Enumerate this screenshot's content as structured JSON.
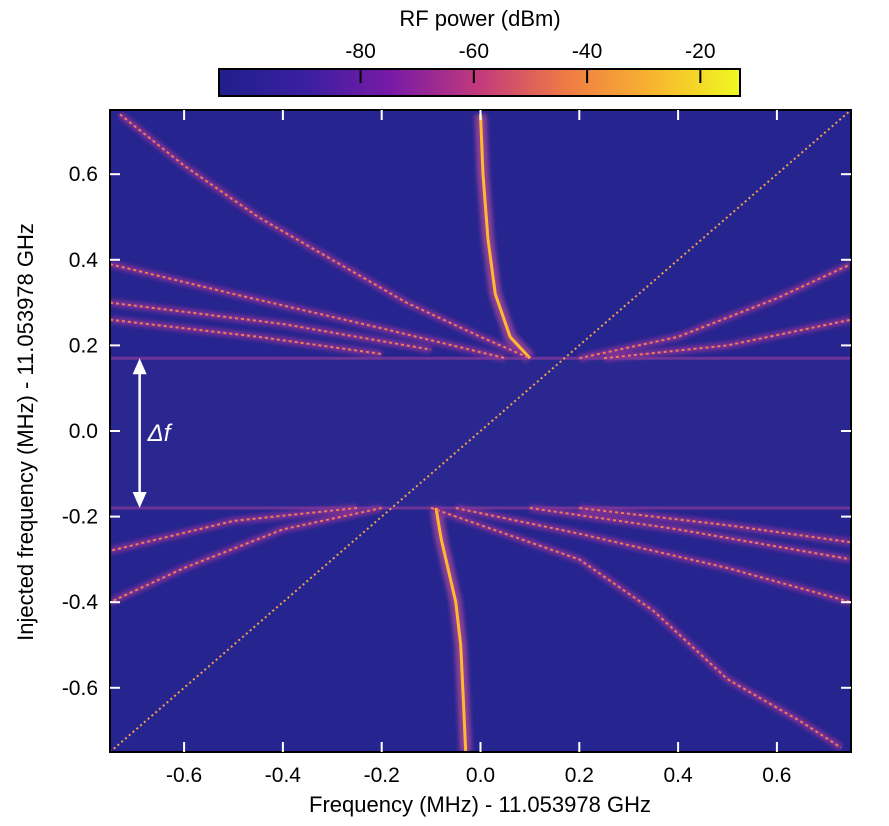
{
  "chart_data": {
    "type": "heatmap",
    "xlabel": "Frequency (MHz) - 11.053978 GHz",
    "ylabel": "Injected frequency (MHz) - 11.053978 GHz",
    "xlim": [
      -0.75,
      0.75
    ],
    "ylim": [
      -0.75,
      0.75
    ],
    "xticks": [
      -0.6,
      -0.4,
      -0.2,
      0.0,
      0.2,
      0.4,
      0.6
    ],
    "xtick_labels": [
      "-0.6",
      "-0.4",
      "-0.2",
      "0.0",
      "0.2",
      "0.4",
      "0.6"
    ],
    "yticks": [
      -0.6,
      -0.4,
      -0.2,
      0.0,
      0.2,
      0.4,
      0.6
    ],
    "ytick_labels": [
      "-0.6",
      "-0.4",
      "-0.2",
      "0.0",
      "0.2",
      "0.4",
      "0.6"
    ],
    "colorbar": {
      "label": "RF power (dBm)",
      "range": [
        -105,
        -13
      ],
      "ticks": [
        -80,
        -60,
        -40,
        -20
      ],
      "tick_labels": [
        "-80",
        "-60",
        "-40",
        "-20"
      ],
      "colormap": "plasma",
      "colors": [
        "#1f1f8c",
        "#3a1fa0",
        "#7a1aa6",
        "#c33a7c",
        "#ef7b45",
        "#f8b52f",
        "#f0f921"
      ]
    },
    "background_color": "#26248f",
    "locking_band": {
      "ymin": -0.18,
      "ymax": 0.17,
      "color": "#2a2890"
    },
    "annotation": {
      "label": "Δf",
      "from_y": 0.17,
      "to_y": -0.18,
      "x": -0.69
    },
    "traces": [
      {
        "name": "injected-signal",
        "kind": "diagonal",
        "x": [
          -0.75,
          0.75
        ],
        "y": [
          -0.75,
          0.75
        ]
      },
      {
        "name": "free-running-upper",
        "x": [
          0.0,
          0.005,
          0.015,
          0.03,
          0.06,
          0.1
        ],
        "y": [
          0.74,
          0.6,
          0.45,
          0.32,
          0.22,
          0.17
        ]
      },
      {
        "name": "free-running-lower",
        "x": [
          -0.09,
          -0.08,
          -0.05,
          -0.04,
          -0.035,
          -0.03
        ],
        "y": [
          -0.18,
          -0.25,
          -0.4,
          -0.5,
          -0.62,
          -0.75
        ]
      },
      {
        "name": "sideband-upper-1",
        "x": [
          -0.73,
          -0.6,
          -0.45,
          -0.3,
          -0.15,
          0.0,
          0.1
        ],
        "y": [
          0.74,
          0.62,
          0.5,
          0.4,
          0.3,
          0.22,
          0.17
        ]
      },
      {
        "name": "sideband-upper-2",
        "x": [
          -0.75,
          -0.5,
          -0.2,
          0.05
        ],
        "y": [
          0.39,
          0.32,
          0.24,
          0.17
        ]
      },
      {
        "name": "sideband-upper-3",
        "x": [
          -0.75,
          -0.4,
          -0.1
        ],
        "y": [
          0.3,
          0.25,
          0.19
        ]
      },
      {
        "name": "sideband-upper-4",
        "x": [
          -0.75,
          -0.45,
          -0.2
        ],
        "y": [
          0.26,
          0.22,
          0.18
        ]
      },
      {
        "name": "sideband-upper-right",
        "x": [
          0.2,
          0.4,
          0.6,
          0.75
        ],
        "y": [
          0.17,
          0.22,
          0.31,
          0.39
        ]
      },
      {
        "name": "sideband-upper-right-2",
        "x": [
          0.25,
          0.5,
          0.75
        ],
        "y": [
          0.17,
          0.2,
          0.26
        ]
      },
      {
        "name": "sideband-lower-1",
        "x": [
          -0.1,
          0.05,
          0.2,
          0.35,
          0.5,
          0.65,
          0.73
        ],
        "y": [
          -0.18,
          -0.24,
          -0.3,
          -0.42,
          -0.58,
          -0.68,
          -0.74
        ]
      },
      {
        "name": "sideband-lower-2",
        "x": [
          -0.05,
          0.2,
          0.5,
          0.75
        ],
        "y": [
          -0.18,
          -0.24,
          -0.32,
          -0.4
        ]
      },
      {
        "name": "sideband-lower-3",
        "x": [
          0.1,
          0.4,
          0.75
        ],
        "y": [
          -0.18,
          -0.23,
          -0.3
        ]
      },
      {
        "name": "sideband-lower-4",
        "x": [
          0.2,
          0.5,
          0.75
        ],
        "y": [
          -0.18,
          -0.22,
          -0.26
        ]
      },
      {
        "name": "sideband-lower-left",
        "x": [
          -0.2,
          -0.4,
          -0.6,
          -0.75
        ],
        "y": [
          -0.18,
          -0.23,
          -0.32,
          -0.4
        ]
      },
      {
        "name": "sideband-lower-left-2",
        "x": [
          -0.25,
          -0.5,
          -0.75
        ],
        "y": [
          -0.18,
          -0.21,
          -0.28
        ]
      }
    ]
  }
}
